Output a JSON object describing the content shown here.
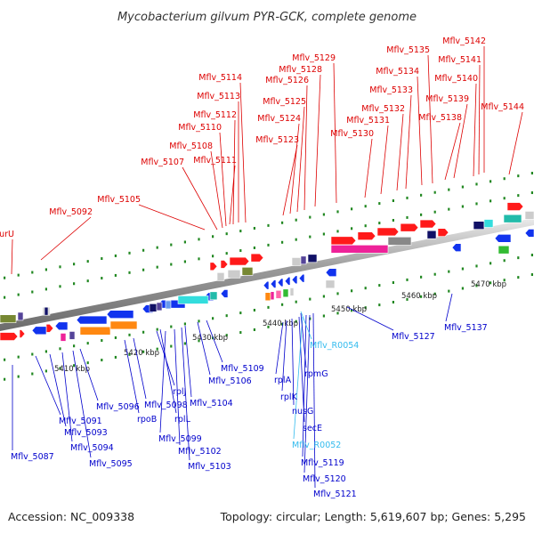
{
  "title": "Mycobacterium gilvum PYR-GCK, complete genome",
  "footer": {
    "accession": "Accession: NC_009338",
    "summary": "Topology: circular; Length: 5,619,607 bp; Genes: 5,295"
  },
  "colors": {
    "top_labels": "#dd0000",
    "bottom_labels": "#0000cc",
    "rna_labels": "#33bbee",
    "ticks": "#228822",
    "backbone": "#999999"
  },
  "scale_labels": [
    "5410 kbp",
    "5420 kbp",
    "5430 kbp",
    "5440 kbp",
    "5450 kbp",
    "5460 kbp",
    "5470 kbp"
  ],
  "top_labels": [
    "purU",
    "Mflv_5092",
    "Mflv_5105",
    "Mflv_5107",
    "Mflv_5108",
    "Mflv_5110",
    "Mflv_5111",
    "Mflv_5112",
    "Mflv_5113",
    "Mflv_5114",
    "Mflv_5123",
    "Mflv_5124",
    "Mflv_5125",
    "Mflv_5126",
    "Mflv_5128",
    "Mflv_5129",
    "Mflv_5130",
    "Mflv_5131",
    "Mflv_5132",
    "Mflv_5133",
    "Mflv_5134",
    "Mflv_5135",
    "Mflv_5138",
    "Mflv_5139",
    "Mflv_5140",
    "Mflv_5141",
    "Mflv_5142",
    "Mflv_5144"
  ],
  "bottom_labels": [
    "Mflv_5087",
    "Mflv_5091",
    "Mflv_5093",
    "Mflv_5094",
    "Mflv_5095",
    "Mflv_5096",
    "rpoB",
    "Mflv_5098",
    "rplJ",
    "rplL",
    "Mflv_5099",
    "Mflv_5102",
    "Mflv_5103",
    "Mflv_5104",
    "Mflv_5106",
    "Mflv_5109",
    "rplA",
    "rplK",
    "nusG",
    "secE",
    "Mflv_R0052",
    "Mflv_5119",
    "Mflv_5120",
    "Mflv_5121",
    "rpmG",
    "Mflv_R0054",
    "Mflv_5127",
    "Mflv_5137"
  ]
}
